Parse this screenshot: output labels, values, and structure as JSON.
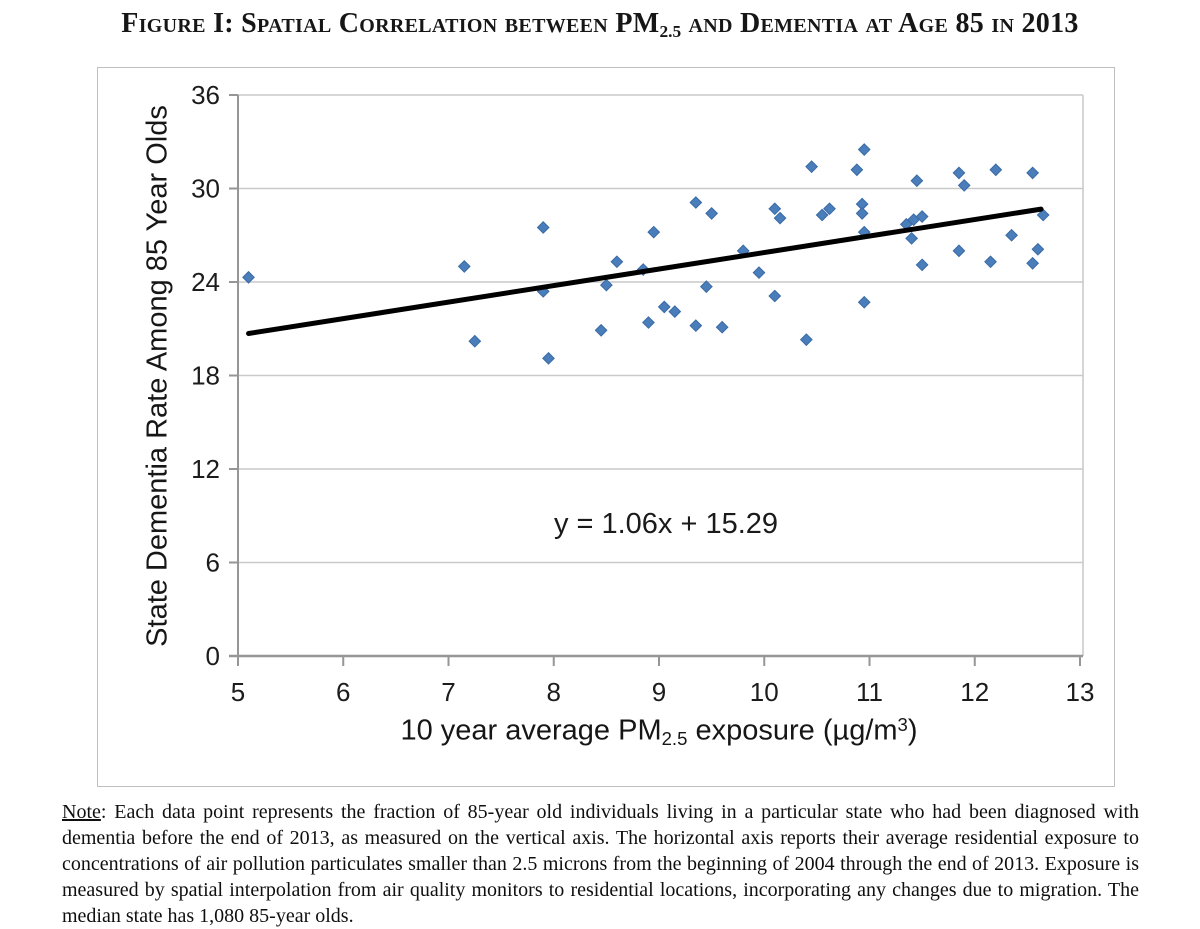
{
  "figure": {
    "title": {
      "pre": "Figure I: Spatial Correlation between PM",
      "sub": "2.5",
      "post": " and Dementia at Age 85 in 2013"
    },
    "note": {
      "label": "Note",
      "separator": ": ",
      "body": "Each data point represents the fraction of 85-year old individuals living in a particular state who had been diagnosed with dementia before the end of 2013, as measured on the vertical axis. The horizontal axis reports their average residential exposure to concentrations of air pollution particulates smaller than 2.5 microns from the beginning of 2004 through the end of 2013. Exposure is measured by spatial interpolation from air quality monitors to residential locations, incorporating any changes due to migration. The median state has 1,080 85-year olds."
    }
  },
  "chart_data": {
    "type": "scatter",
    "title": "Figure I: Spatial Correlation between PM2.5 and Dementia at Age 85 in 2013",
    "xlabel": "10 year average PM2.5 exposure (µg/m³)",
    "xlabel_parts": {
      "pre": "10 year average PM",
      "sub": "2.5",
      "mid": " exposure (µg/m",
      "sup": "3",
      "post": ")"
    },
    "ylabel": "State Dementia Rate Among 85 Year Olds",
    "xlim": [
      5,
      13
    ],
    "ylim": [
      0,
      36
    ],
    "x_ticks": [
      5,
      6,
      7,
      8,
      9,
      10,
      11,
      12,
      13
    ],
    "y_ticks": [
      0,
      6,
      12,
      18,
      24,
      30,
      36
    ],
    "grid": "horizontal",
    "legend": "none",
    "equation": "y = 1.06x + 15.29",
    "trendline": {
      "slope": 1.06,
      "intercept": 15.29,
      "x_start": 5.1,
      "x_end": 12.63
    },
    "points": [
      [
        5.1,
        24.3
      ],
      [
        7.15,
        25.0
      ],
      [
        7.25,
        20.2
      ],
      [
        7.9,
        27.5
      ],
      [
        7.9,
        23.4
      ],
      [
        7.95,
        19.1
      ],
      [
        8.45,
        20.9
      ],
      [
        8.5,
        23.8
      ],
      [
        8.6,
        25.3
      ],
      [
        8.85,
        24.8
      ],
      [
        8.95,
        27.2
      ],
      [
        8.9,
        21.4
      ],
      [
        9.05,
        22.4
      ],
      [
        9.15,
        22.1
      ],
      [
        9.35,
        29.1
      ],
      [
        9.35,
        21.2
      ],
      [
        9.5,
        28.4
      ],
      [
        9.45,
        23.7
      ],
      [
        9.6,
        21.1
      ],
      [
        9.8,
        26.0
      ],
      [
        9.95,
        24.6
      ],
      [
        10.1,
        28.7
      ],
      [
        10.15,
        28.1
      ],
      [
        10.1,
        23.1
      ],
      [
        10.4,
        20.3
      ],
      [
        10.45,
        31.4
      ],
      [
        10.55,
        28.3
      ],
      [
        10.62,
        28.7
      ],
      [
        10.88,
        31.2
      ],
      [
        10.95,
        32.5
      ],
      [
        10.93,
        29.0
      ],
      [
        10.93,
        28.4
      ],
      [
        10.95,
        27.2
      ],
      [
        10.95,
        22.7
      ],
      [
        11.35,
        27.7
      ],
      [
        11.42,
        28.0
      ],
      [
        11.5,
        28.2
      ],
      [
        11.4,
        26.8
      ],
      [
        11.45,
        30.5
      ],
      [
        11.5,
        25.1
      ],
      [
        11.85,
        31.0
      ],
      [
        11.9,
        30.2
      ],
      [
        11.85,
        26.0
      ],
      [
        12.15,
        25.3
      ],
      [
        12.2,
        31.2
      ],
      [
        12.35,
        27.0
      ],
      [
        12.55,
        31.0
      ],
      [
        12.6,
        26.1
      ],
      [
        12.55,
        25.2
      ],
      [
        12.65,
        28.3
      ]
    ],
    "colors": {
      "point": "#4A7EBB",
      "point_border": "#3A6AA5",
      "trend": "#000000",
      "grid": "#C9C9C9",
      "axis": "#969696",
      "text": "#1C1C1C",
      "frame_border": "#BFBFBF"
    }
  }
}
